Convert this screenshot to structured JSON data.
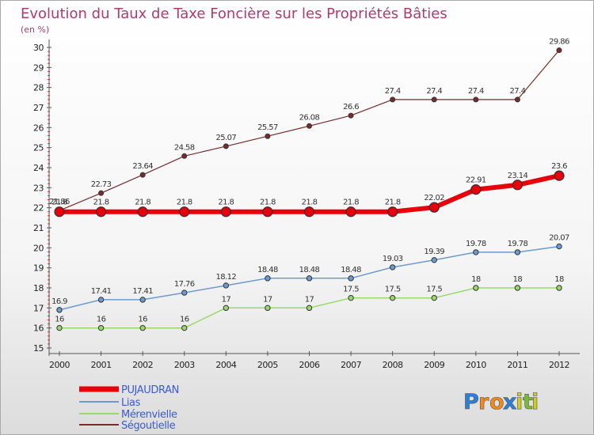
{
  "chart_data": {
    "type": "line",
    "title": "Evolution du Taux de Taxe Foncière sur les Propriétés Bâties",
    "subtitle": "(en %)",
    "xlabel": "",
    "ylabel": "",
    "categories": [
      "2000",
      "2001",
      "2002",
      "2003",
      "2004",
      "2005",
      "2006",
      "2007",
      "2008",
      "2009",
      "2010",
      "2011",
      "2012"
    ],
    "ylim": [
      15,
      30
    ],
    "yticks": [
      15,
      16,
      17,
      18,
      19,
      20,
      21,
      22,
      23,
      24,
      25,
      26,
      27,
      28,
      29,
      30
    ],
    "grid": false,
    "legend_position": "bottom-left",
    "series": [
      {
        "name": "PUJAUDRAN",
        "color": "#e8000b",
        "values": [
          21.8,
          21.8,
          21.8,
          21.8,
          21.8,
          21.8,
          21.8,
          21.8,
          21.8,
          22.02,
          22.91,
          23.14,
          23.6
        ],
        "labels": [
          "21.8",
          "21.8",
          "21.8",
          "21.8",
          "21.8",
          "21.8",
          "21.8",
          "21.8",
          "21.8",
          "22.02",
          "22.91",
          "23.14",
          "23.6"
        ]
      },
      {
        "name": "Lias",
        "color": "#6b9bd1",
        "values": [
          16.9,
          17.41,
          17.41,
          17.76,
          18.12,
          18.48,
          18.48,
          18.48,
          19.03,
          19.39,
          19.78,
          19.78,
          20.07
        ],
        "labels": [
          "16.9",
          "17.41",
          "17.41",
          "17.76",
          "18.12",
          "18.48",
          "18.48",
          "18.48",
          "19.03",
          "19.39",
          "19.78",
          "19.78",
          "20.07"
        ]
      },
      {
        "name": "Mérenvielle",
        "color": "#99d96a",
        "values": [
          16,
          16,
          16,
          16,
          17,
          17,
          17,
          17.5,
          17.5,
          17.5,
          18,
          18,
          18
        ],
        "labels": [
          "16",
          "16",
          "16",
          "16",
          "17",
          "17",
          "17",
          "17.5",
          "17.5",
          "17.5",
          "18",
          "18",
          "18"
        ]
      },
      {
        "name": "Ségoutielle",
        "color": "#7a2a2a",
        "values": [
          21.86,
          22.73,
          23.64,
          24.58,
          25.07,
          25.57,
          26.08,
          26.6,
          27.4,
          27.4,
          27.4,
          27.4,
          29.86
        ],
        "labels": [
          "21.86",
          "22.73",
          "23.64",
          "24.58",
          "25.07",
          "25.57",
          "26.08",
          "26.6",
          "27.4",
          "27.4",
          "27.4",
          "27.4",
          "29.86"
        ]
      }
    ]
  },
  "brand": {
    "letters": [
      "P",
      "r",
      "o",
      "x",
      "i",
      "t",
      "i"
    ],
    "colors": [
      "#2e7fd1",
      "#f08a1c",
      "#f08a1c",
      "#2e7fd1",
      "#cccc22",
      "#77bb33",
      "#cccc22"
    ]
  }
}
